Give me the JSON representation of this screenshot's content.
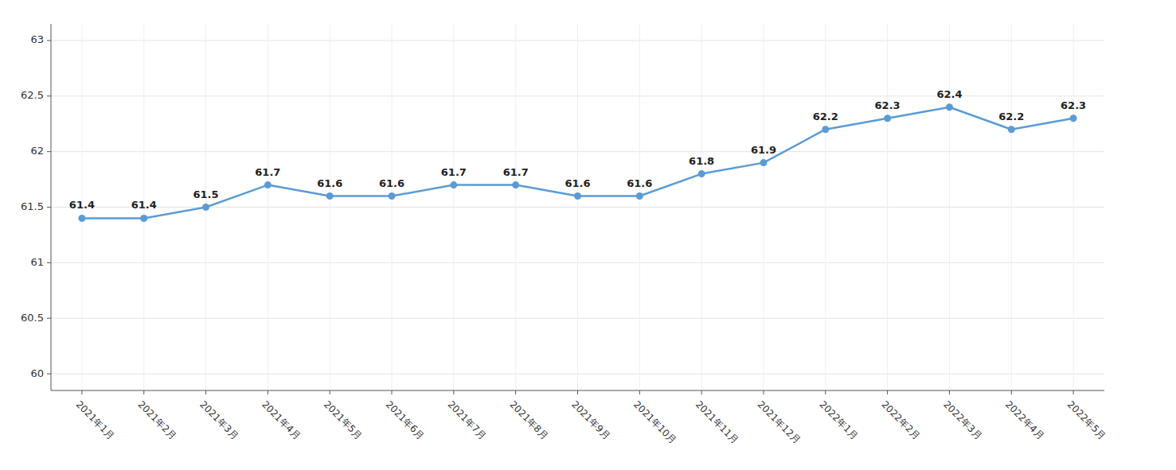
{
  "chart_data": {
    "type": "line",
    "categories": [
      "2021年1月",
      "2021年2月",
      "2021年3月",
      "2021年4月",
      "2021年5月",
      "2021年6月",
      "2021年7月",
      "2021年8月",
      "2021年9月",
      "2021年10月",
      "2021年11月",
      "2021年12月",
      "2022年1月",
      "2022年2月",
      "2022年3月",
      "2022年4月",
      "2022年5月"
    ],
    "values": [
      61.4,
      61.4,
      61.5,
      61.7,
      61.6,
      61.6,
      61.7,
      61.7,
      61.6,
      61.6,
      61.8,
      61.9,
      62.2,
      62.3,
      62.4,
      62.2,
      62.3
    ],
    "color": "#5B9BD5",
    "marker": "circle",
    "ylim": [
      59.85,
      63.15
    ],
    "yticks": [
      60,
      60.5,
      61,
      61.5,
      62,
      62.5,
      63
    ],
    "grid": true,
    "data_labels": true
  }
}
